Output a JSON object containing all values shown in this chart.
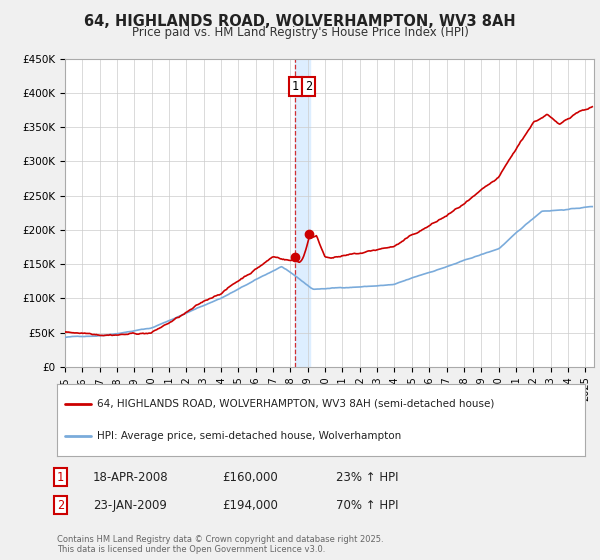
{
  "title": "64, HIGHLANDS ROAD, WOLVERHAMPTON, WV3 8AH",
  "subtitle": "Price paid vs. HM Land Registry's House Price Index (HPI)",
  "legend_line1": "64, HIGHLANDS ROAD, WOLVERHAMPTON, WV3 8AH (semi-detached house)",
  "legend_line2": "HPI: Average price, semi-detached house, Wolverhampton",
  "transaction1_date": "18-APR-2008",
  "transaction1_price": "£160,000",
  "transaction1_hpi": "23% ↑ HPI",
  "transaction2_date": "23-JAN-2009",
  "transaction2_price": "£194,000",
  "transaction2_hpi": "70% ↑ HPI",
  "footer": "Contains HM Land Registry data © Crown copyright and database right 2025.\nThis data is licensed under the Open Government Licence v3.0.",
  "property_color": "#cc0000",
  "hpi_color": "#7aabdb",
  "highlight_color": "#ddeeff",
  "ylim": [
    0,
    450000
  ],
  "xlim_start": 1995.0,
  "xlim_end": 2025.5,
  "background_color": "#f0f0f0",
  "plot_background": "#ffffff",
  "grid_color": "#cccccc",
  "marker_color": "#cc0000",
  "trans1_x": 2008.29,
  "trans1_y": 160000,
  "trans2_x": 2009.07,
  "trans2_y": 194000,
  "vline_x": 2008.29,
  "vspan_x0": 2008.29,
  "vspan_x1": 2009.15
}
